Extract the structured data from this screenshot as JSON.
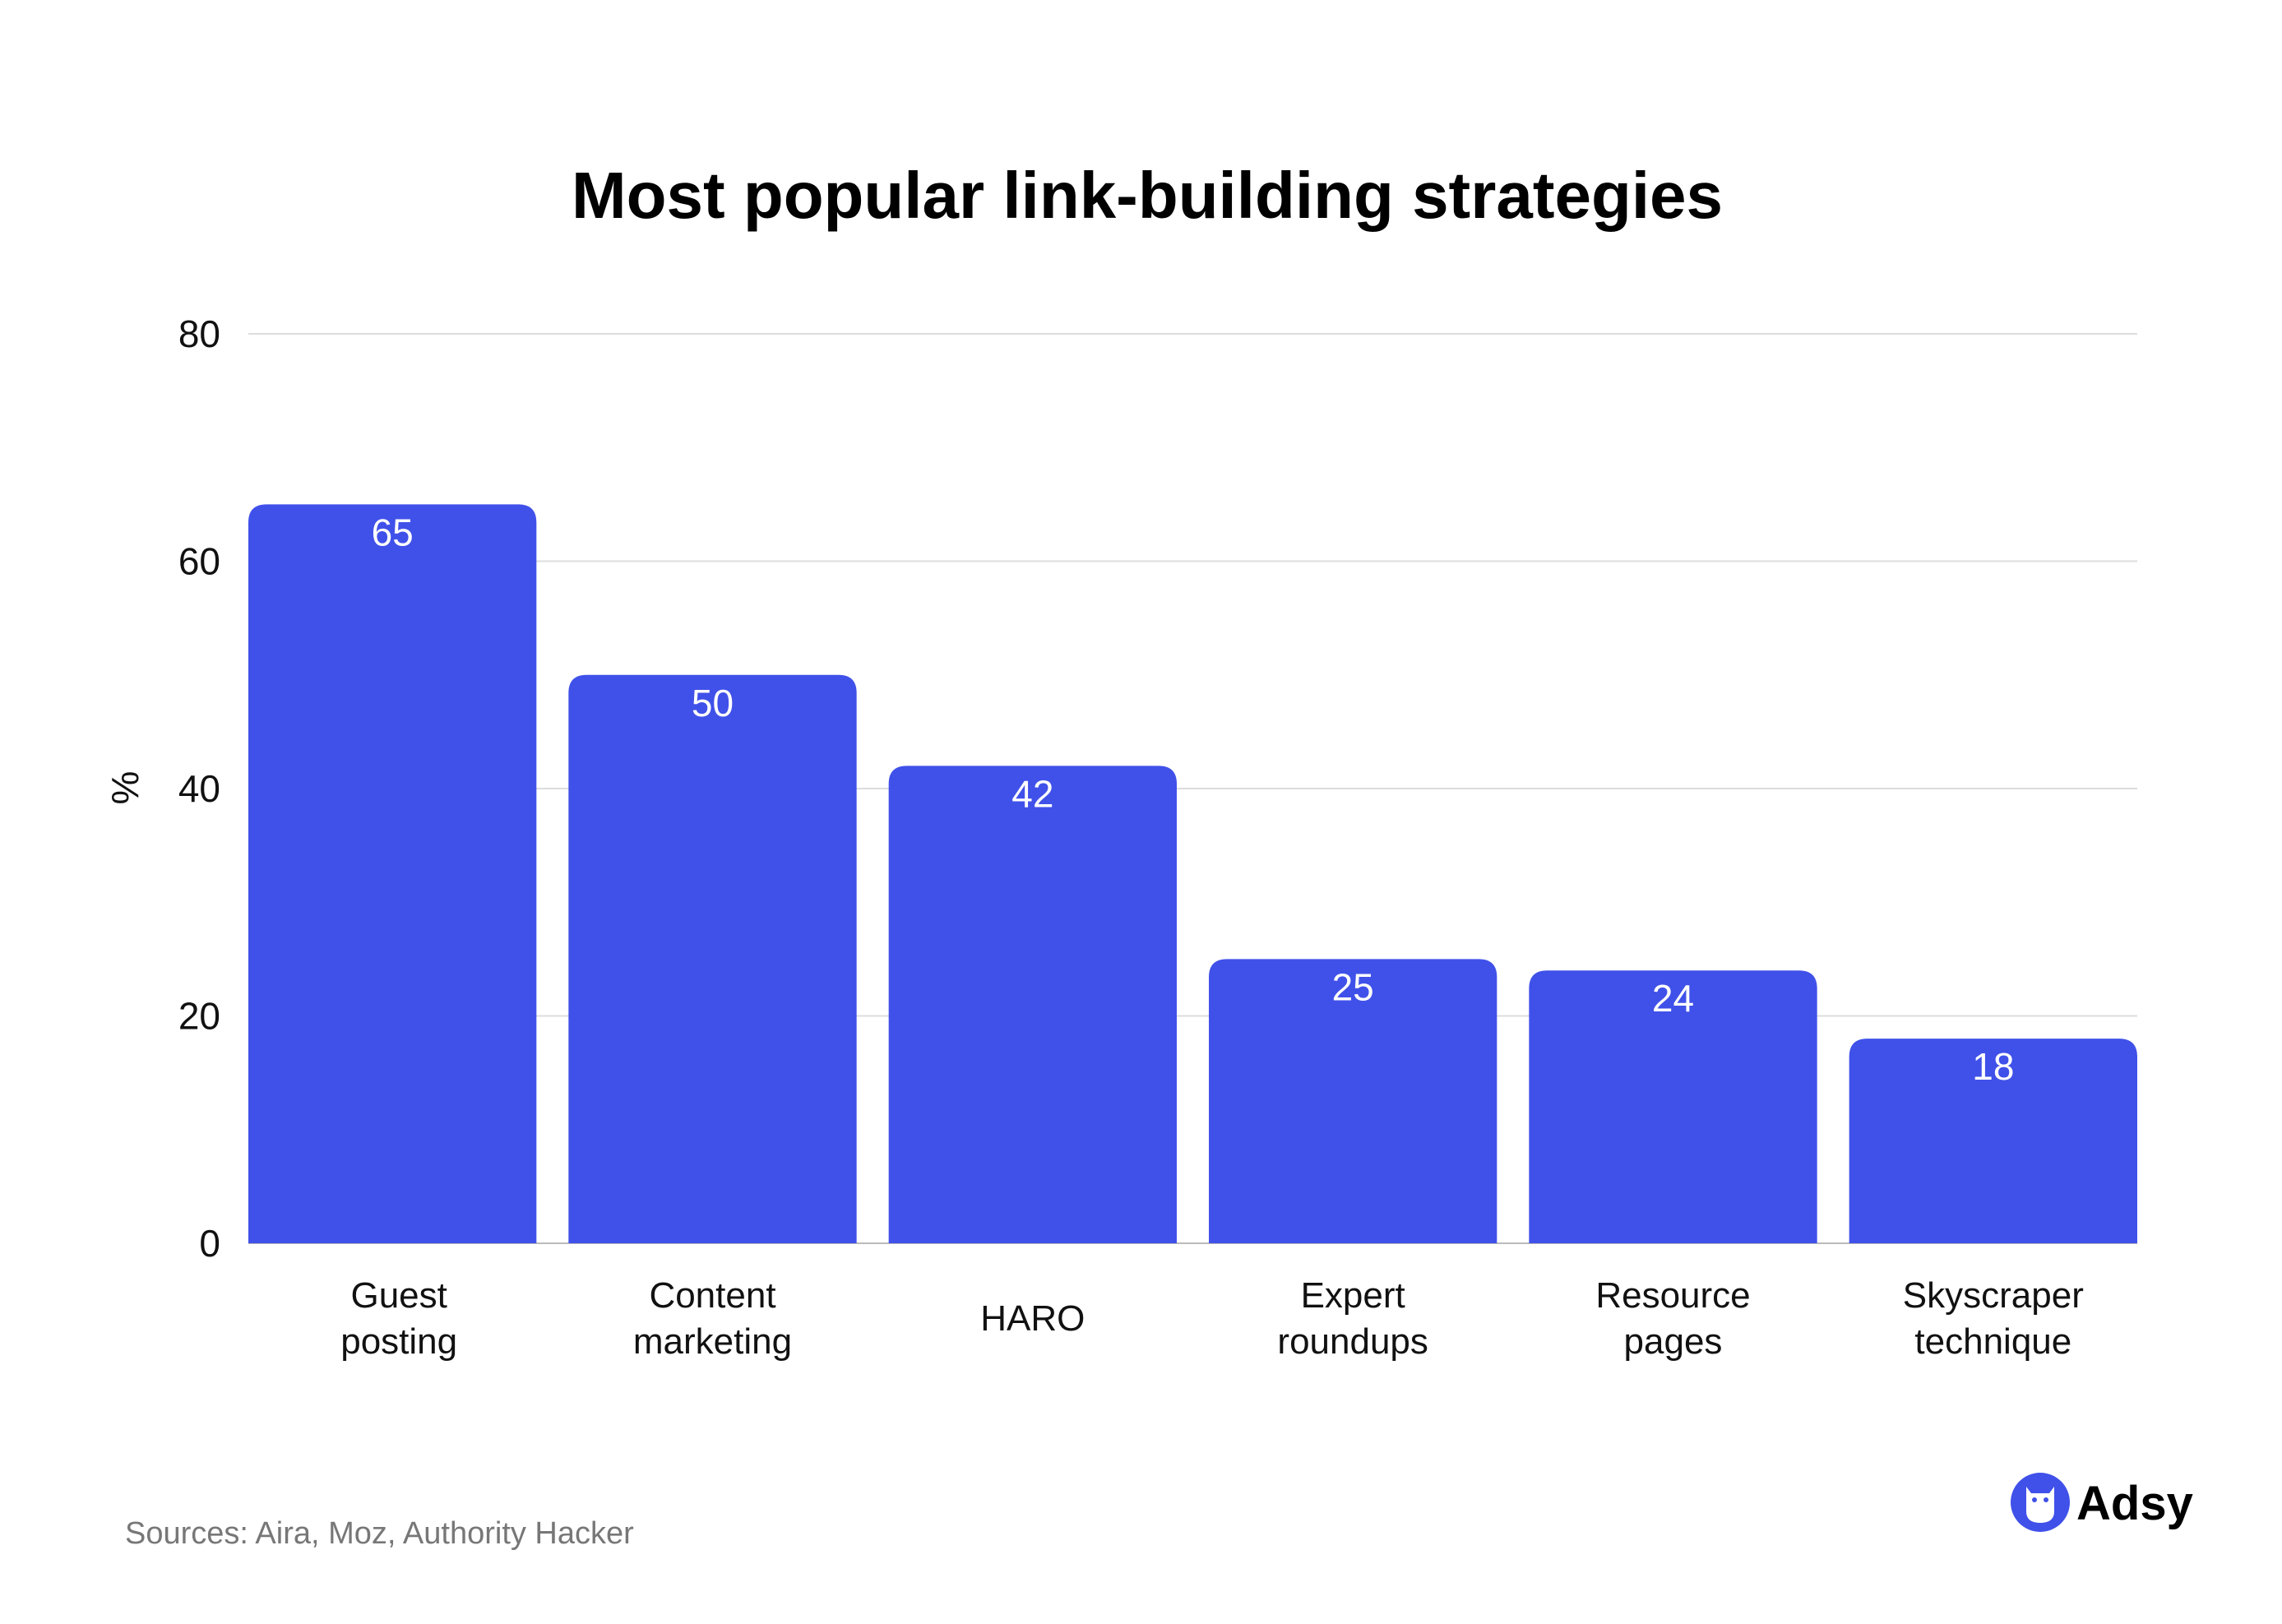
{
  "chart_data": {
    "type": "bar",
    "title": "Most popular link-building strategies",
    "ylabel": "%",
    "xlabel": "",
    "ylim": [
      0,
      80
    ],
    "yticks": [
      0,
      20,
      40,
      60,
      80
    ],
    "grid": true,
    "categories": [
      [
        "Guest",
        "posting"
      ],
      [
        "Content",
        "marketing"
      ],
      [
        "HARO"
      ],
      [
        "Expert",
        "roundups"
      ],
      [
        "Resource",
        "pages"
      ],
      [
        "Skyscraper",
        "technique"
      ]
    ],
    "values": [
      65,
      50,
      42,
      25,
      24,
      18
    ],
    "data_labels": [
      "65",
      "50",
      "42",
      "25",
      "24",
      "18"
    ],
    "bar_color": "#4051E9"
  },
  "footer": {
    "source": "Sources: Aira, Moz, Authority Hacker",
    "logo_text": "Adsy",
    "logo_icon": "owl-icon"
  }
}
